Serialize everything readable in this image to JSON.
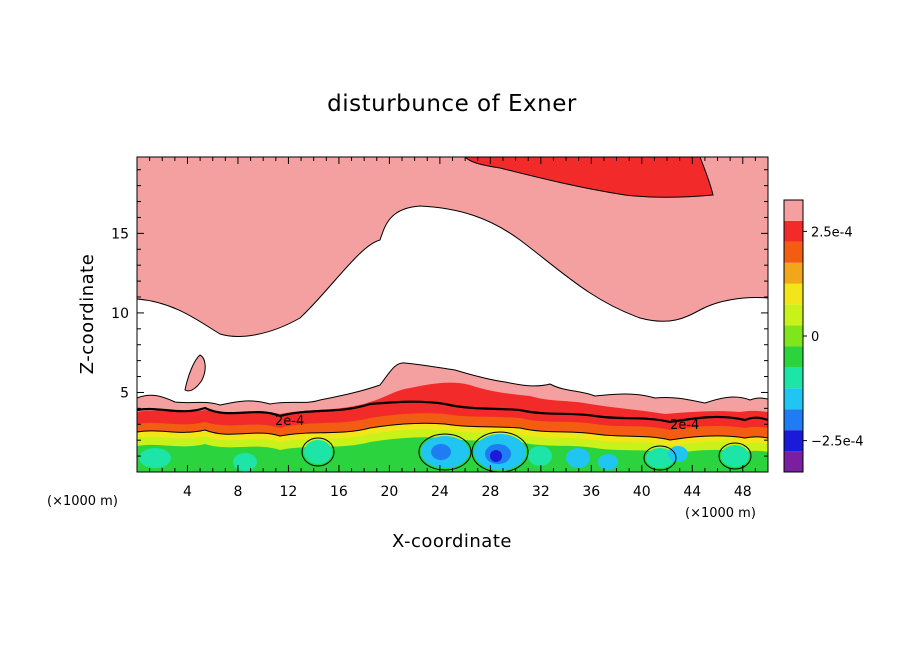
{
  "chart_data": {
    "type": "heatmap",
    "subtype": "filled-contour",
    "title": "disturbunce of Exner",
    "xlabel": "X-coordinate",
    "ylabel": "Z-coordinate",
    "x_unit_label": "(×1000 m)",
    "x_unit_label_right": "(×1000 m)",
    "xlim": [
      0,
      50
    ],
    "ylim": [
      0,
      19.8
    ],
    "x_ticks": [
      4,
      8,
      12,
      16,
      20,
      24,
      28,
      32,
      36,
      40,
      44,
      48
    ],
    "y_ticks": [
      5,
      10,
      15
    ],
    "contour_labels": [
      "2e-4",
      "2e-4"
    ],
    "colorbar": {
      "colors": [
        "#7a1fa0",
        "#1a1ad9",
        "#1f7cf2",
        "#21c5f2",
        "#1de5a8",
        "#2bd33f",
        "#7fe61b",
        "#c9f21a",
        "#f2e61a",
        "#f2a61a",
        "#f25d12",
        "#f22a2a",
        "#f5a0a0"
      ],
      "labels": [
        {
          "text": "2.5e-4",
          "level": 0.00025
        },
        {
          "text": "0",
          "level": 0
        },
        {
          "text": "−2.5e-4",
          "level": -0.00025
        }
      ],
      "min": -0.000325,
      "max": 0.000325
    },
    "grid": false,
    "legend": "colorbar-right"
  }
}
